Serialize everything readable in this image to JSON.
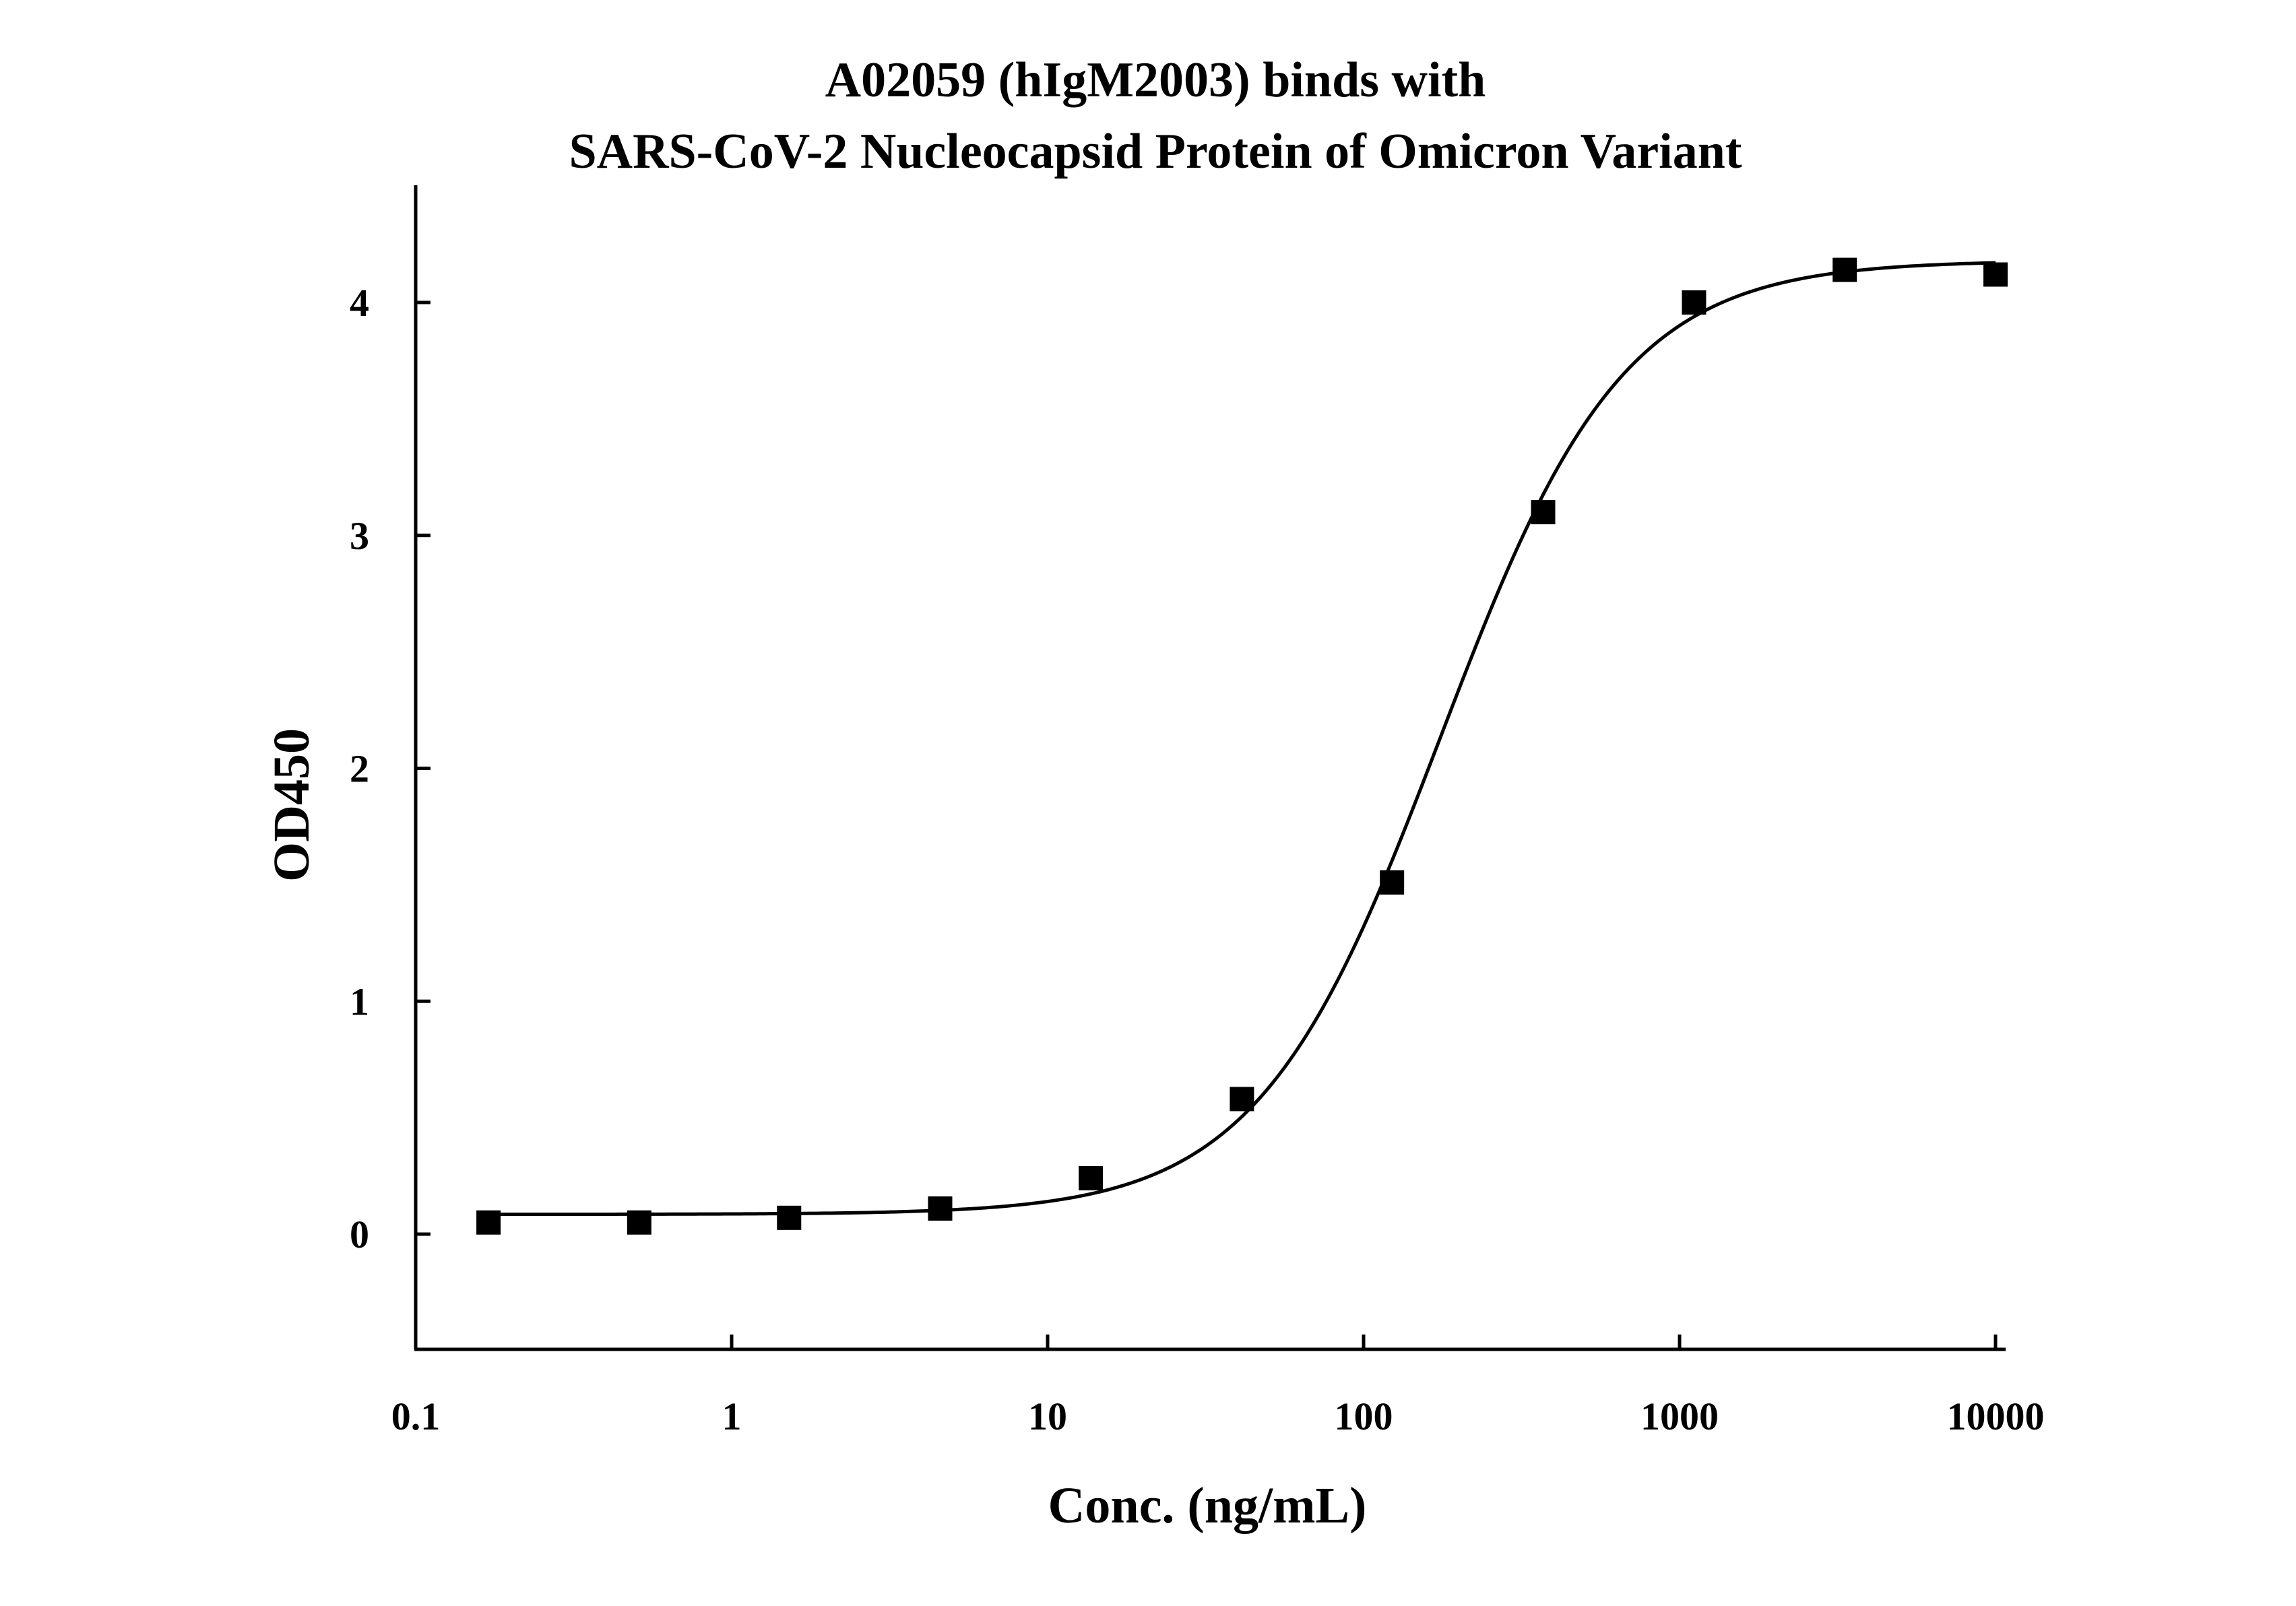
{
  "chart_data": {
    "type": "scatter",
    "title_lines": [
      "A02059 (hIgM2003) binds with",
      "SARS-CoV-2 Nucleocapsid Protein of Omicron Variant"
    ],
    "xlabel": "Conc. (ng/mL)",
    "ylabel": "OD450",
    "x_scale": "log",
    "xlim": [
      0.1,
      10000
    ],
    "ylim": [
      -0.5,
      4.5
    ],
    "x_ticks": [
      0.1,
      1,
      10,
      100,
      1000,
      10000
    ],
    "x_tick_labels": [
      "0.1",
      "1",
      "10",
      "100",
      "1000",
      "10000"
    ],
    "y_ticks": [
      0,
      1,
      2,
      3,
      4
    ],
    "y_tick_labels": [
      "0",
      "1",
      "2",
      "3",
      "4"
    ],
    "grid": false,
    "legend": "none",
    "marker": "square",
    "color": "#000000",
    "series": [
      {
        "x": [
          0.17,
          0.51,
          1.52,
          4.57,
          13.7,
          41.2,
          123,
          370,
          1111,
          3333,
          10000
        ],
        "y": [
          0.05,
          0.05,
          0.07,
          0.11,
          0.24,
          0.58,
          1.51,
          3.1,
          4.0,
          4.14,
          4.12
        ]
      }
    ],
    "fit": {
      "type": "4PL",
      "bottom": 0.085,
      "top": 4.18,
      "ec50": 175,
      "hill": 1.5
    }
  }
}
